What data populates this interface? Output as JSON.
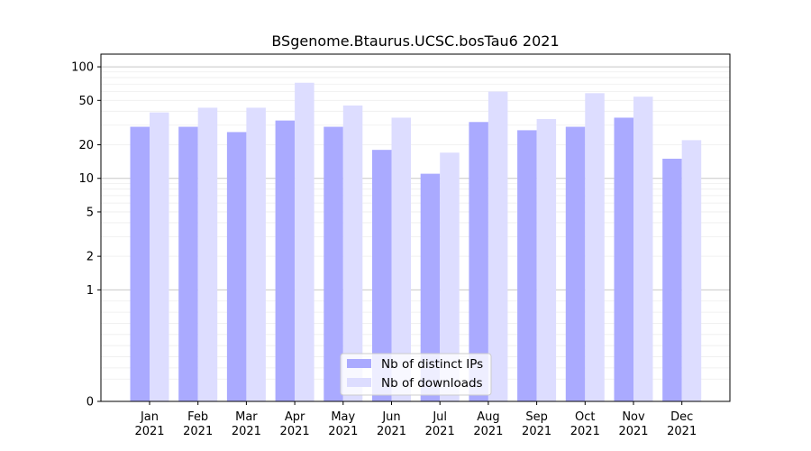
{
  "chart_data": {
    "type": "bar",
    "title": "BSgenome.Btaurus.UCSC.bosTau6 2021",
    "xlabel": "",
    "ylabel": "",
    "scale": "symlog",
    "ylim": [
      0,
      130
    ],
    "yticks": [
      0,
      1,
      2,
      5,
      10,
      20,
      50,
      100
    ],
    "ytick_labels": [
      "0",
      "1",
      "2",
      "5",
      "10",
      "20",
      "50",
      "100"
    ],
    "categories": [
      "Jan\n2021",
      "Feb\n2021",
      "Mar\n2021",
      "Apr\n2021",
      "May\n2021",
      "Jun\n2021",
      "Jul\n2021",
      "Aug\n2021",
      "Sep\n2021",
      "Oct\n2021",
      "Nov\n2021",
      "Dec\n2021"
    ],
    "series": [
      {
        "name": "Nb of distinct IPs",
        "color": "#aaaaff",
        "values": [
          29,
          29,
          26,
          33,
          29,
          18,
          11,
          32,
          27,
          29,
          35,
          15
        ]
      },
      {
        "name": "Nb of downloads",
        "color": "#ddddff",
        "values": [
          39,
          43,
          43,
          72,
          45,
          35,
          17,
          60,
          34,
          58,
          54,
          22
        ]
      }
    ],
    "grid": true,
    "legend_position": "lower center"
  }
}
